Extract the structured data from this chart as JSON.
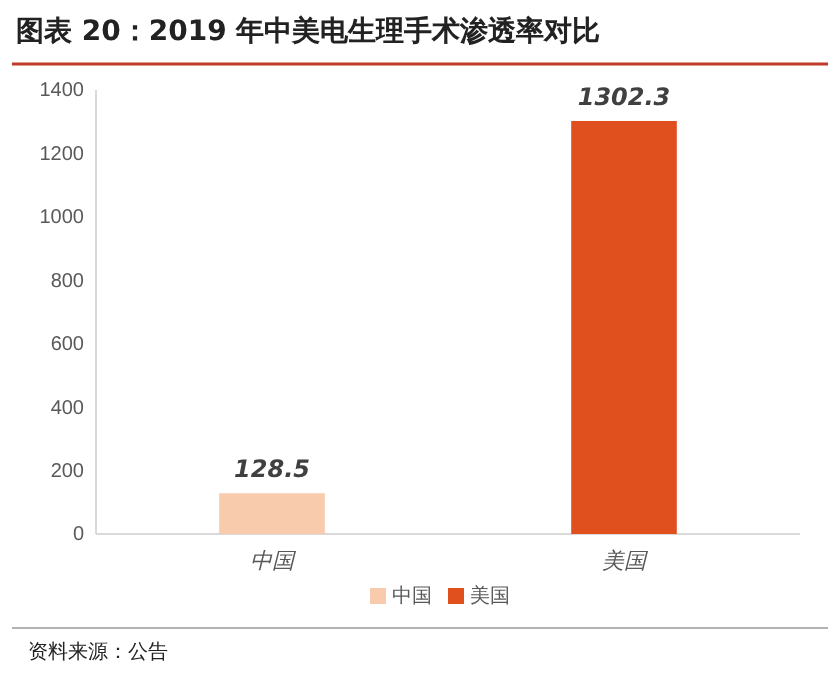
{
  "chart_data": {
    "type": "bar",
    "title": "图表 20：2019 年中美电生理手术渗透率对比",
    "categories": [
      "中国",
      "美国"
    ],
    "series": [
      {
        "name": "中国",
        "color": "#f8cbad",
        "values": [
          128.5,
          null
        ]
      },
      {
        "name": "美国",
        "color": "#e0501e",
        "values": [
          null,
          1302.3
        ]
      }
    ],
    "ylim": [
      0,
      1400
    ],
    "yticks": [
      0,
      200,
      400,
      600,
      800,
      1000,
      1200,
      1400
    ],
    "data_labels": true,
    "legend": "bottom",
    "grid": false,
    "annotations": [
      "资料来源：公告"
    ]
  }
}
